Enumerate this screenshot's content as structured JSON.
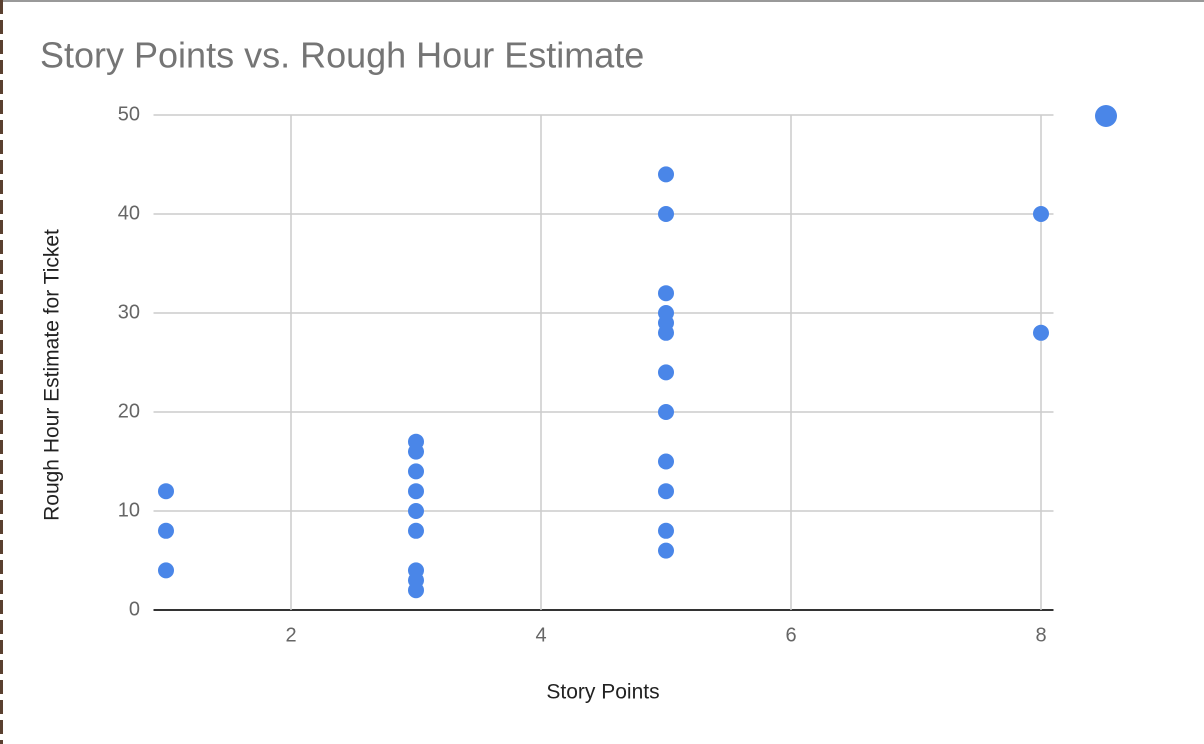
{
  "chart_data": {
    "type": "scatter",
    "title": "Story Points vs. Rough Hour Estimate",
    "x_label": "Story Points",
    "y_label": "Rough Hour Estimate for Ticket",
    "x": [
      1,
      1,
      1,
      3,
      3,
      3,
      3,
      3,
      3,
      3,
      3,
      3,
      5,
      5,
      5,
      5,
      5,
      5,
      5,
      5,
      5,
      5,
      5,
      5,
      8,
      8
    ],
    "values": [
      12,
      8,
      4,
      17,
      16,
      14,
      12,
      10,
      8,
      4,
      3,
      2,
      44,
      40,
      32,
      30,
      29,
      28,
      24,
      20,
      15,
      12,
      8,
      6,
      40,
      28
    ],
    "color": "#4a86e8",
    "xlim": [
      0.9,
      8.1
    ],
    "xticks": [
      2,
      4,
      6,
      8
    ],
    "ylim": [
      0,
      50
    ],
    "yticks": [
      0,
      10,
      20,
      30,
      40,
      50
    ],
    "grid": true
  }
}
